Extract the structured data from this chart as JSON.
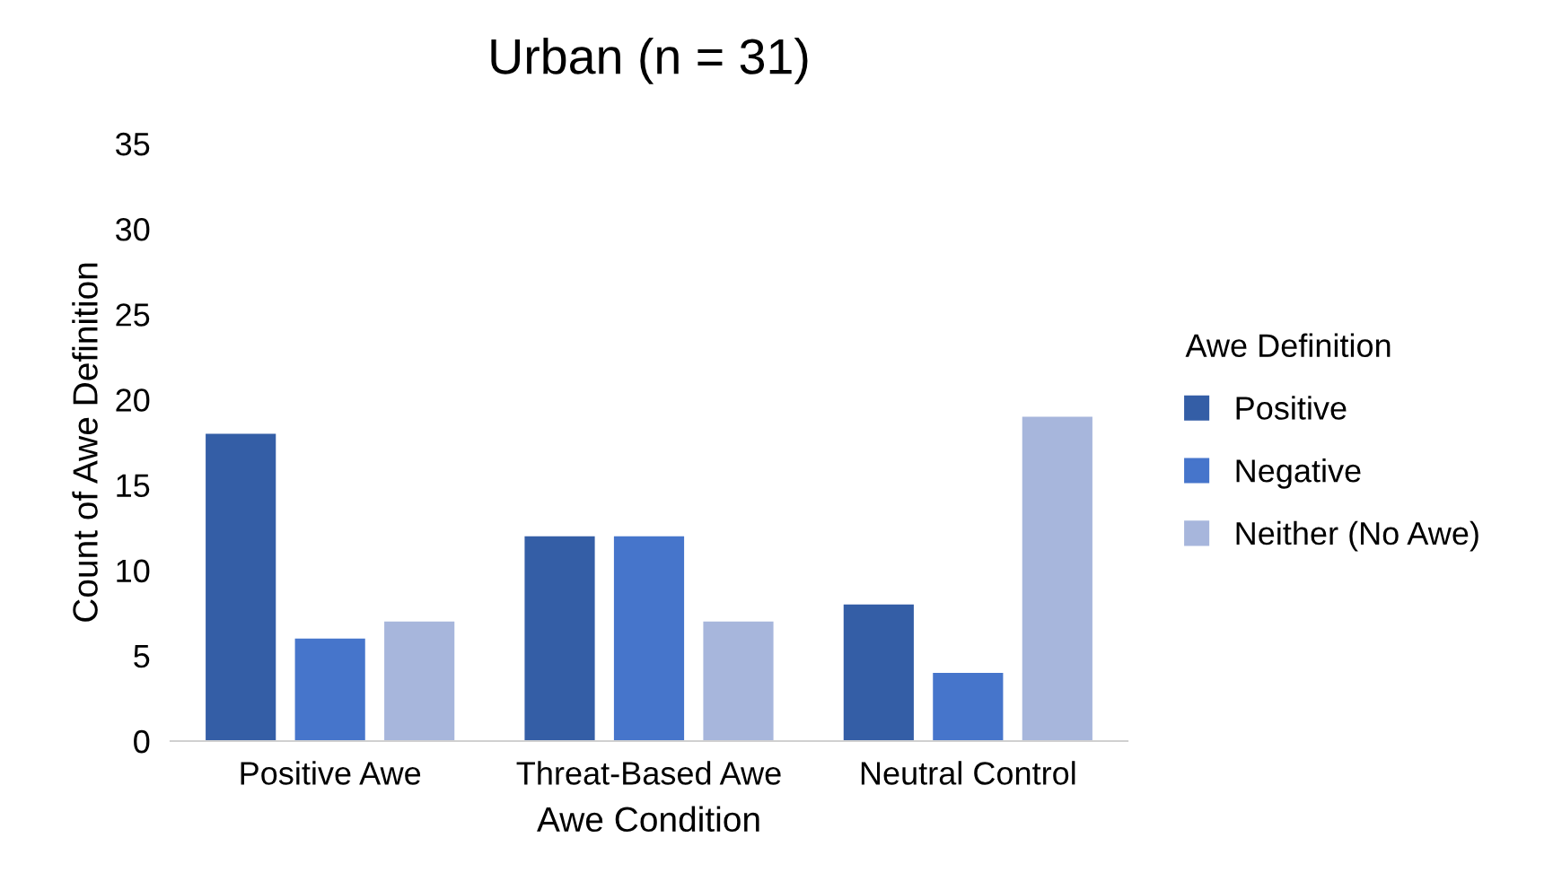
{
  "chart_data": {
    "type": "bar",
    "title": "Urban (n = 31)",
    "xlabel": "Awe Condition",
    "ylabel": "Count of Awe Definition",
    "legend_title": "Awe Definition",
    "categories": [
      "Positive Awe",
      "Threat-Based Awe",
      "Neutral Control"
    ],
    "series": [
      {
        "name": "Positive",
        "color": "#345ea6",
        "values": [
          18,
          12,
          8
        ]
      },
      {
        "name": "Negative",
        "color": "#4675cb",
        "values": [
          6,
          12,
          4
        ]
      },
      {
        "name": "Neither (No Awe)",
        "color": "#a7b6dc",
        "values": [
          7,
          7,
          19
        ]
      }
    ],
    "ylim": [
      0,
      35
    ],
    "yticks": [
      0,
      5,
      10,
      15,
      20,
      25,
      30,
      35
    ],
    "grid": false,
    "legend": "right"
  }
}
